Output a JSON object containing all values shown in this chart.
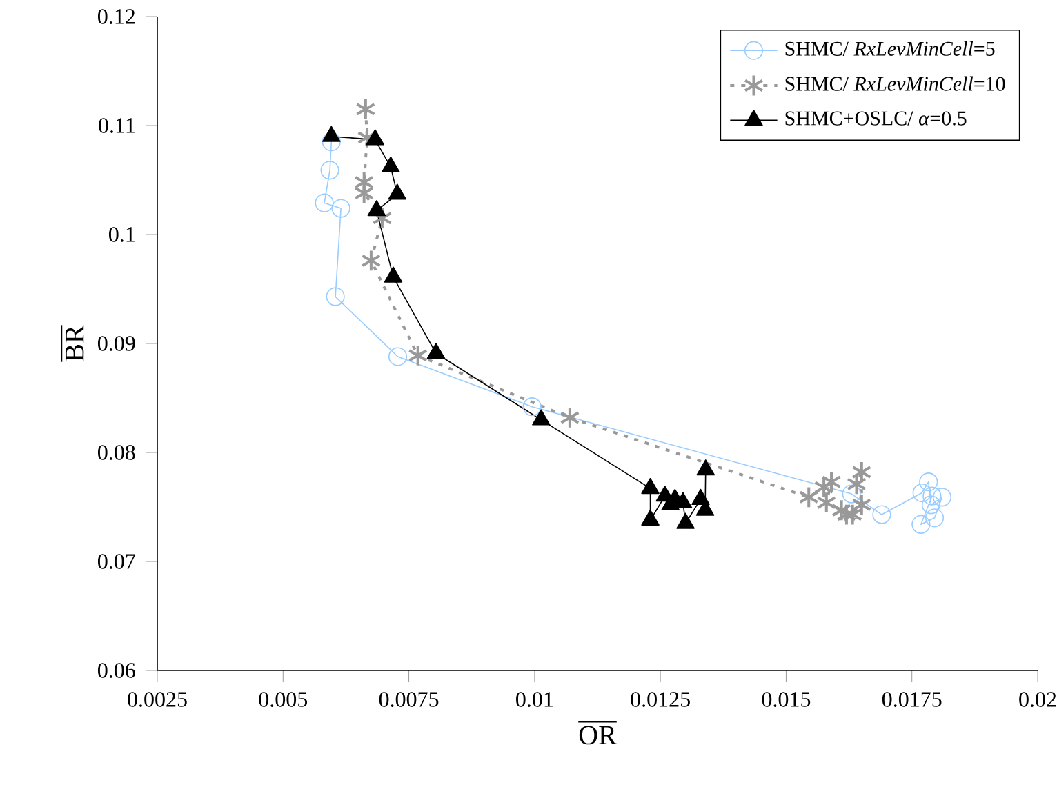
{
  "chart_data": {
    "type": "line",
    "xlabel": "\\overline{\\mathrm{OR}}",
    "ylabel": "\\overline{\\mathrm{BR}}",
    "xlim": [
      0.0025,
      0.02
    ],
    "xticks": [
      0.0025,
      0.005,
      0.0075,
      0.01,
      0.0125,
      0.015,
      0.0175,
      0.02
    ],
    "ylim": [
      0.06,
      0.12
    ],
    "yticks": [
      0.06,
      0.07,
      0.08,
      0.09,
      0.1,
      0.11,
      0.12
    ],
    "legend": "top right",
    "grid": false,
    "series": [
      {
        "name": "SHMC/ *RxLevMinCell*=5",
        "color": "#99ccff",
        "marker": "circle",
        "line_style": "solid",
        "x": [
          0.00596,
          0.00593,
          0.00582,
          0.00615,
          0.00604,
          0.00728,
          0.00995,
          0.0163,
          0.0169,
          0.0177,
          0.01783,
          0.01788,
          0.0181,
          0.01795,
          0.01768,
          0.0179
        ],
        "values": [
          0.1085,
          0.1059,
          0.1029,
          0.1024,
          0.0943,
          0.0888,
          0.0842,
          0.0762,
          0.0743,
          0.0763,
          0.0773,
          0.0752,
          0.0759,
          0.074,
          0.0734,
          0.076
        ]
      },
      {
        "name": "SHMC/ *RxLevMinCell*=10",
        "color": "#999999",
        "marker": "cross",
        "line_style": "dotted",
        "x": [
          0.00664,
          0.00667,
          0.00661,
          0.00661,
          0.00697,
          0.00675,
          0.00768,
          0.0107,
          0.01545,
          0.01575,
          0.0159,
          0.0158,
          0.0161,
          0.0162,
          0.01632,
          0.0165,
          0.0165,
          0.0164
        ],
        "values": [
          0.1115,
          0.1089,
          0.1048,
          0.1038,
          0.1015,
          0.0976,
          0.0889,
          0.0832,
          0.0759,
          0.0768,
          0.0773,
          0.0754,
          0.0747,
          0.0743,
          0.0743,
          0.0752,
          0.0782,
          0.0771
        ]
      },
      {
        "name": "SHMC+OSLC/ *α*=0.5",
        "color": "#000000",
        "marker": "triangle",
        "line_style": "solid",
        "x": [
          0.00596,
          0.00683,
          0.00714,
          0.00727,
          0.00686,
          0.00719,
          0.00804,
          0.01013,
          0.0123,
          0.0123,
          0.01259,
          0.01279,
          0.0127,
          0.01295,
          0.013,
          0.0133,
          0.01339,
          0.0134
        ],
        "values": [
          0.109,
          0.1087,
          0.1062,
          0.1037,
          0.1022,
          0.0961,
          0.0891,
          0.083,
          0.0767,
          0.0738,
          0.076,
          0.0757,
          0.0752,
          0.0754,
          0.0735,
          0.0757,
          0.0747,
          0.0784
        ]
      }
    ]
  }
}
